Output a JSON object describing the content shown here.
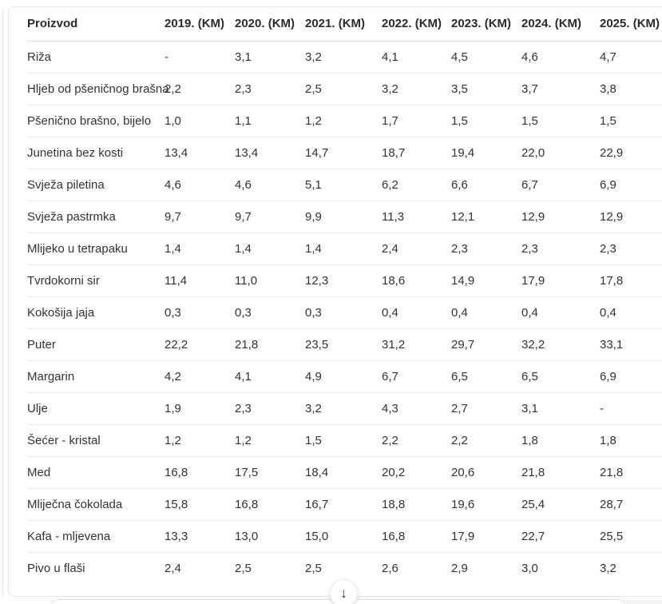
{
  "table": {
    "columns": [
      "Proizvod",
      "2019. (KM)",
      "2020. (KM)",
      "2021. (KM)",
      "2022. (KM)",
      "2023. (KM)",
      "2024. (KM)",
      "2025. (KM)"
    ],
    "rows": [
      {
        "label": "Riža",
        "values": [
          "-",
          "3,1",
          "3,2",
          "4,1",
          "4,5",
          "4,6",
          "4,7"
        ]
      },
      {
        "label": "Hljeb od pšeničnog brašna",
        "values": [
          "2,2",
          "2,3",
          "2,5",
          "3,2",
          "3,5",
          "3,7",
          "3,8"
        ]
      },
      {
        "label": "Pšenično brašno, bijelo",
        "values": [
          "1,0",
          "1,1",
          "1,2",
          "1,7",
          "1,5",
          "1,5",
          "1,5"
        ]
      },
      {
        "label": "Junetina bez kosti",
        "values": [
          "13,4",
          "13,4",
          "14,7",
          "18,7",
          "19,4",
          "22,0",
          "22,9"
        ]
      },
      {
        "label": "Svježa piletina",
        "values": [
          "4,6",
          "4,6",
          "5,1",
          "6,2",
          "6,6",
          "6,7",
          "6,9"
        ]
      },
      {
        "label": "Svježa pastrmka",
        "values": [
          "9,7",
          "9,7",
          "9,9",
          "11,3",
          "12,1",
          "12,9",
          "12,9"
        ]
      },
      {
        "label": "Mlijeko u tetrapaku",
        "values": [
          "1,4",
          "1,4",
          "1,4",
          "2,4",
          "2,3",
          "2,3",
          "2,3"
        ]
      },
      {
        "label": "Tvrdokorni sir",
        "values": [
          "11,4",
          "11,0",
          "12,3",
          "18,6",
          "14,9",
          "17,9",
          "17,8"
        ]
      },
      {
        "label": "Kokošija jaja",
        "values": [
          "0,3",
          "0,3",
          "0,3",
          "0,4",
          "0,4",
          "0,4",
          "0,4"
        ]
      },
      {
        "label": "Puter",
        "values": [
          "22,2",
          "21,8",
          "23,5",
          "31,2",
          "29,7",
          "32,2",
          "33,1"
        ]
      },
      {
        "label": "Margarin",
        "values": [
          "4,2",
          "4,1",
          "4,9",
          "6,7",
          "6,5",
          "6,5",
          "6,9"
        ]
      },
      {
        "label": "Ulje",
        "values": [
          "1,9",
          "2,3",
          "3,2",
          "4,3",
          "2,7",
          "3,1",
          "-"
        ]
      },
      {
        "label": "Šećer - kristal",
        "values": [
          "1,2",
          "1,2",
          "1,5",
          "2,2",
          "2,2",
          "1,8",
          "1,8"
        ]
      },
      {
        "label": "Med",
        "values": [
          "16,8",
          "17,5",
          "18,4",
          "20,2",
          "20,6",
          "21,8",
          "21,8"
        ]
      },
      {
        "label": "Mliječna čokolada",
        "values": [
          "15,8",
          "16,8",
          "16,7",
          "18,8",
          "19,6",
          "25,4",
          "28,7"
        ]
      },
      {
        "label": "Kafa - mljevena",
        "values": [
          "13,3",
          "13,0",
          "15,0",
          "16,8",
          "17,9",
          "22,7",
          "25,5"
        ]
      },
      {
        "label": "Pivo u flaši",
        "values": [
          "2,4",
          "2,5",
          "2,5",
          "2,6",
          "2,9",
          "3,0",
          "3,2"
        ]
      }
    ]
  },
  "scroll_button": {
    "icon": "↓"
  },
  "colors": {
    "text": "#333333",
    "header_text": "#2b2b2b",
    "card_border": "#e7e7e7",
    "row_divider": "#ececec",
    "header_divider": "#e2e2e2"
  }
}
